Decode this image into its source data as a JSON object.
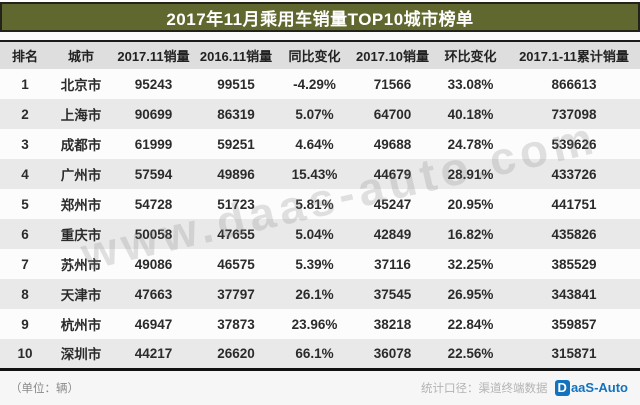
{
  "title": "2017年11月乘用车销量TOP10城市榜单",
  "watermark": "www.daas-auto.com",
  "chart_data": {
    "type": "table",
    "title": "2017年11月乘用车销量TOP10城市榜单",
    "columns": [
      "排名",
      "城市",
      "2017.11销量",
      "2016.11销量",
      "同比变化",
      "2017.10销量",
      "环比变化",
      "2017.1-11累计销量"
    ],
    "rows": [
      [
        "1",
        "北京市",
        "95243",
        "99515",
        "-4.29%",
        "71566",
        "33.08%",
        "866613"
      ],
      [
        "2",
        "上海市",
        "90699",
        "86319",
        "5.07%",
        "64700",
        "40.18%",
        "737098"
      ],
      [
        "3",
        "成都市",
        "61999",
        "59251",
        "4.64%",
        "49688",
        "24.78%",
        "539626"
      ],
      [
        "4",
        "广州市",
        "57594",
        "49896",
        "15.43%",
        "44679",
        "28.91%",
        "433726"
      ],
      [
        "5",
        "郑州市",
        "54728",
        "51723",
        "5.81%",
        "45247",
        "20.95%",
        "441751"
      ],
      [
        "6",
        "重庆市",
        "50058",
        "47655",
        "5.04%",
        "42849",
        "16.82%",
        "435826"
      ],
      [
        "7",
        "苏州市",
        "49086",
        "46575",
        "5.39%",
        "37116",
        "32.25%",
        "385529"
      ],
      [
        "8",
        "天津市",
        "47663",
        "37797",
        "26.1%",
        "37545",
        "26.95%",
        "343841"
      ],
      [
        "9",
        "杭州市",
        "46947",
        "37873",
        "23.96%",
        "38218",
        "22.84%",
        "359857"
      ],
      [
        "10",
        "深圳市",
        "44217",
        "26620",
        "66.1%",
        "36078",
        "22.56%",
        "315871"
      ]
    ]
  },
  "footer": {
    "unit_note": "（单位：辆）",
    "source_note": "统计口径：渠道终端数据",
    "logo_d": "D",
    "logo_rest": "aaS-Auto"
  },
  "colors": {
    "title_bar": "#61682f",
    "header_row": "#dedede",
    "alt_row": "#e9e9e9",
    "logo_blue": "#1372bd",
    "border_black": "#111111"
  }
}
